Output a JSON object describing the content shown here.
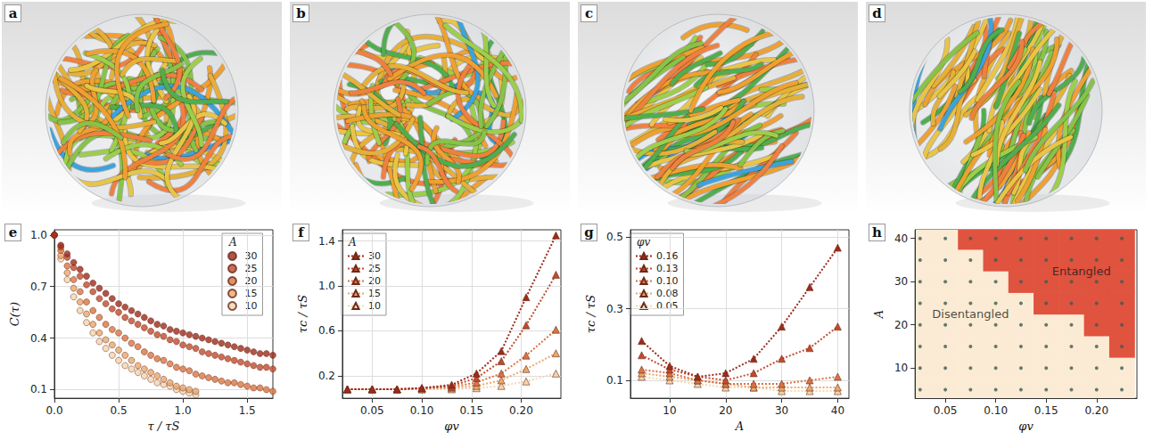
{
  "images": [
    {
      "panel": "a"
    },
    {
      "panel": "b"
    },
    {
      "panel": "c"
    },
    {
      "panel": "d"
    }
  ],
  "chart_data": [
    {
      "panel": "e",
      "type": "scatter",
      "marker": "circle",
      "grid": true,
      "legend": "upper right",
      "legend_title": "A",
      "xlabel": "τ / τS",
      "ylabel": "C(τ)",
      "xlim": [
        0,
        1.7
      ],
      "xticks": [
        {
          "value": 0,
          "label": "0.0"
        },
        0.5,
        {
          "value": 1,
          "label": "1.0"
        },
        1.5
      ],
      "ylim": [
        0.05,
        1.03
      ],
      "yticks": [
        0.1,
        0.4,
        0.7,
        {
          "value": 1,
          "label": "1.0"
        }
      ],
      "x": [
        0,
        0.05,
        0.1,
        0.15,
        0.2,
        0.25,
        0.3,
        0.35,
        0.4,
        0.45,
        0.5,
        0.55,
        0.6,
        0.65,
        0.7,
        0.75,
        0.8,
        0.85,
        0.9,
        0.95,
        1.0,
        1.05,
        1.1,
        1.15,
        1.2,
        1.25,
        1.3,
        1.35,
        1.4,
        1.45,
        1.5,
        1.55,
        1.6,
        1.65,
        1.7
      ],
      "series": [
        {
          "name": "30",
          "color": "#9c2b1c",
          "values": [
            1.0,
            0.94,
            0.89,
            0.84,
            0.8,
            0.76,
            0.72,
            0.69,
            0.66,
            0.63,
            0.6,
            0.58,
            0.56,
            0.54,
            0.52,
            0.5,
            0.48,
            0.47,
            0.45,
            0.44,
            0.43,
            0.42,
            0.41,
            0.4,
            0.39,
            0.38,
            0.37,
            0.36,
            0.35,
            0.34,
            0.33,
            0.32,
            0.31,
            0.31,
            0.3
          ]
        },
        {
          "name": "25",
          "color": "#c24a2c",
          "values": [
            1.0,
            0.93,
            0.87,
            0.81,
            0.76,
            0.71,
            0.67,
            0.63,
            0.6,
            0.57,
            0.55,
            0.52,
            0.5,
            0.48,
            0.46,
            0.44,
            0.42,
            0.41,
            0.39,
            0.38,
            0.36,
            0.35,
            0.34,
            0.32,
            0.31,
            0.3,
            0.29,
            0.28,
            0.27,
            0.26,
            0.25,
            0.24,
            0.23,
            0.23,
            0.22
          ]
        },
        {
          "name": "20",
          "color": "#da7442",
          "values": [
            1.0,
            0.91,
            0.82,
            0.74,
            0.67,
            0.61,
            0.56,
            0.52,
            0.48,
            0.45,
            0.43,
            0.4,
            0.37,
            0.35,
            0.32,
            0.3,
            0.28,
            0.27,
            0.25,
            0.23,
            0.22,
            0.21,
            0.19,
            0.18,
            0.17,
            0.16,
            0.15,
            0.14,
            0.14,
            0.13,
            0.12,
            0.11,
            0.11,
            0.1,
            0.09
          ]
        },
        {
          "name": "15",
          "color": "#e9a86c",
          "values": [
            1.0,
            0.88,
            0.78,
            0.69,
            0.61,
            0.54,
            0.48,
            0.43,
            0.39,
            0.36,
            0.33,
            0.3,
            0.27,
            0.24,
            0.22,
            0.2,
            0.18,
            0.16,
            0.14,
            0.12,
            0.11,
            0.1,
            0.09,
            null,
            null,
            null,
            null,
            null,
            null,
            null,
            null,
            null,
            null,
            null,
            null
          ]
        },
        {
          "name": "10",
          "color": "#f4d6ad",
          "values": [
            1.0,
            0.86,
            0.74,
            0.64,
            0.56,
            0.49,
            0.43,
            0.38,
            0.34,
            0.3,
            0.27,
            0.24,
            0.22,
            0.2,
            0.18,
            0.16,
            0.14,
            0.13,
            0.12,
            0.1,
            0.09,
            0.08,
            0.07,
            null,
            null,
            null,
            null,
            null,
            null,
            null,
            null,
            null,
            null,
            null,
            null
          ]
        }
      ]
    },
    {
      "panel": "f",
      "type": "line",
      "marker": "triangle",
      "line_style": "dotted",
      "grid": true,
      "legend": "upper left",
      "legend_title": "A",
      "xlabel": "φv",
      "ylabel": "τc / τS",
      "xlim": [
        0.02,
        0.24
      ],
      "xticks": [
        0.05,
        {
          "value": 0.1,
          "label": "0.10"
        },
        0.15,
        {
          "value": 0.2,
          "label": "0.20"
        }
      ],
      "ylim": [
        0,
        1.5
      ],
      "yticks": [
        0.2,
        0.6,
        {
          "value": 1,
          "label": "1.0"
        },
        1.4
      ],
      "x": [
        0.025,
        0.05,
        0.075,
        0.1,
        0.13,
        0.155,
        0.18,
        0.205,
        0.235
      ],
      "series": [
        {
          "name": "30",
          "color": "#9c2b1c",
          "values": [
            0.08,
            0.08,
            0.08,
            0.09,
            0.12,
            0.22,
            0.42,
            0.9,
            1.45
          ]
        },
        {
          "name": "25",
          "color": "#c24a2c",
          "values": [
            0.08,
            0.08,
            0.08,
            0.09,
            0.11,
            0.18,
            0.33,
            0.65,
            1.1
          ]
        },
        {
          "name": "20",
          "color": "#da7442",
          "values": [
            0.08,
            0.08,
            0.08,
            0.09,
            0.1,
            0.14,
            0.22,
            0.38,
            0.61
          ]
        },
        {
          "name": "15",
          "color": "#e9a86c",
          "values": [
            0.08,
            0.08,
            0.08,
            0.08,
            0.09,
            0.11,
            0.16,
            0.26,
            0.4
          ]
        },
        {
          "name": "10",
          "color": "#f4d6ad",
          "values": [
            0.08,
            0.08,
            0.08,
            0.08,
            0.08,
            0.09,
            0.11,
            0.15,
            0.22
          ]
        }
      ]
    },
    {
      "panel": "g",
      "type": "line",
      "marker": "triangle",
      "line_style": "dotted",
      "grid": true,
      "legend": "upper left",
      "legend_title": "φv",
      "xlabel": "A",
      "ylabel": "τc / τS",
      "xlim": [
        3,
        42
      ],
      "xticks": [
        10,
        20,
        30,
        40
      ],
      "ylim": [
        0.05,
        0.52
      ],
      "yticks": [
        0.1,
        0.3,
        0.5
      ],
      "x": [
        5,
        10,
        15,
        20,
        25,
        30,
        35,
        40
      ],
      "series": [
        {
          "name": "0.16",
          "color": "#9c2b1c",
          "values": [
            0.21,
            0.14,
            0.11,
            0.12,
            0.16,
            0.25,
            0.36,
            0.47
          ]
        },
        {
          "name": "0.13",
          "color": "#c24a2c",
          "values": [
            0.17,
            0.13,
            0.11,
            0.1,
            0.12,
            0.16,
            0.19,
            0.25
          ]
        },
        {
          "name": "0.10",
          "color": "#da7442",
          "values": [
            0.13,
            0.12,
            0.1,
            0.09,
            0.09,
            0.09,
            0.1,
            0.11
          ]
        },
        {
          "name": "0.08",
          "color": "#e9a86c",
          "values": [
            0.12,
            0.11,
            0.1,
            0.09,
            0.08,
            0.08,
            0.08,
            0.08
          ]
        },
        {
          "name": "0.05",
          "color": "#f4d6ad",
          "values": [
            0.11,
            0.1,
            0.09,
            0.08,
            0.08,
            0.07,
            0.07,
            0.07
          ]
        }
      ]
    },
    {
      "panel": "h",
      "type": "heatmap",
      "grid": false,
      "xlabel": "φv",
      "ylabel": "A",
      "xlim": [
        0.02,
        0.24
      ],
      "xticks": [
        0.05,
        {
          "value": 0.1,
          "label": "0.10"
        },
        0.15,
        {
          "value": 0.2,
          "label": "0.20"
        }
      ],
      "ylim": [
        3,
        42
      ],
      "yticks": [
        10,
        20,
        30,
        40
      ],
      "cells": {
        "x": [
          0.025,
          0.05,
          0.075,
          0.1,
          0.125,
          0.15,
          0.175,
          0.2,
          0.225
        ],
        "y": [
          5,
          10,
          15,
          20,
          25,
          30,
          35,
          40
        ],
        "values": [
          [
            0,
            0,
            0,
            0,
            0,
            0,
            0,
            0,
            0
          ],
          [
            0,
            0,
            0,
            0,
            0,
            0,
            0,
            0,
            0
          ],
          [
            0,
            0,
            0,
            0,
            0,
            0,
            0,
            0,
            1
          ],
          [
            0,
            0,
            0,
            0,
            0,
            0,
            0,
            1,
            1
          ],
          [
            0,
            0,
            0,
            0,
            0,
            1,
            1,
            1,
            1
          ],
          [
            0,
            0,
            0,
            0,
            1,
            1,
            1,
            1,
            1
          ],
          [
            0,
            0,
            0,
            1,
            1,
            1,
            1,
            1,
            1
          ],
          [
            0,
            0,
            1,
            1,
            1,
            1,
            1,
            1,
            1
          ]
        ],
        "colors": [
          "#fcebd4",
          "#e0533f"
        ]
      },
      "annotations": [
        {
          "text": "Entangled",
          "x": 0.185,
          "y": 32.5
        },
        {
          "text": "Disentangled",
          "x": 0.075,
          "y": 22.5
        }
      ]
    }
  ]
}
